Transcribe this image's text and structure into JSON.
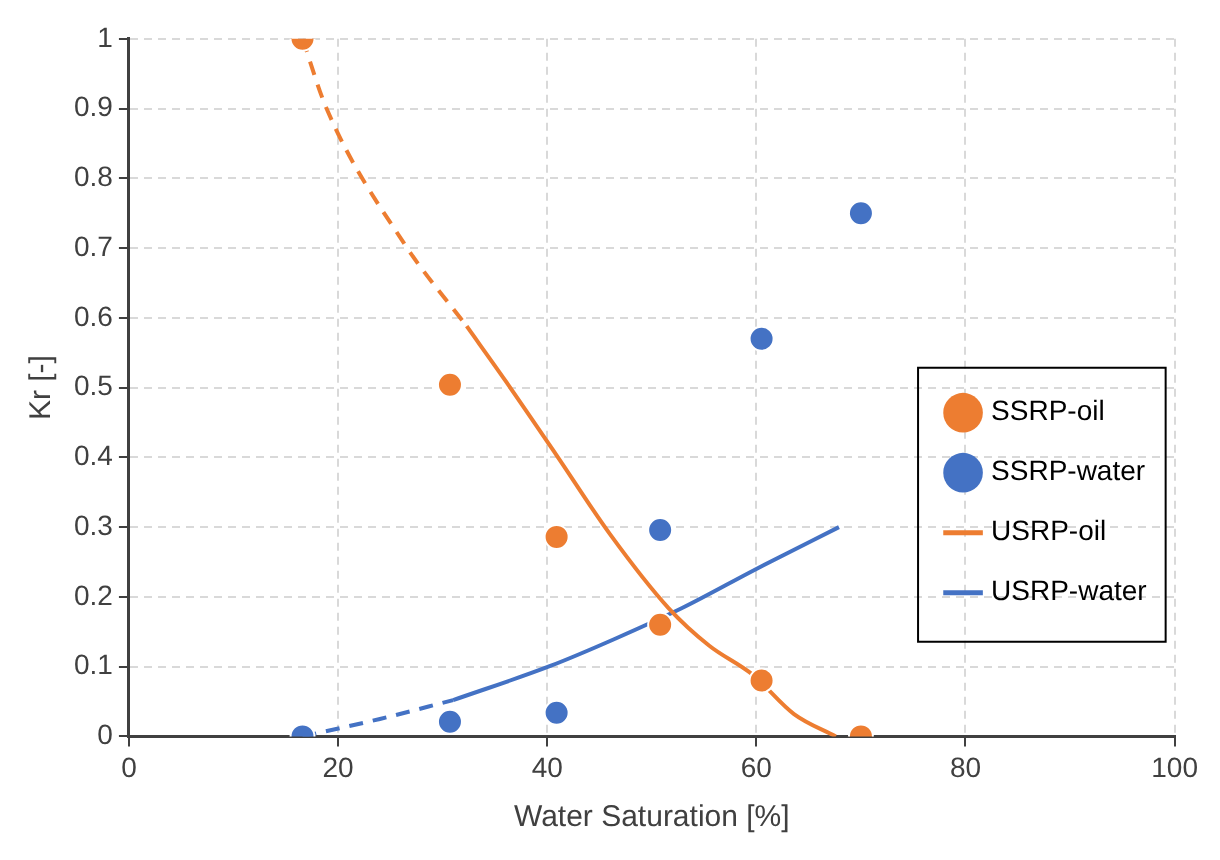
{
  "chart_data": {
    "type": "scatter",
    "xlabel": "Water Saturation [%]",
    "ylabel": "Kr [-]",
    "xlim": [
      0,
      100
    ],
    "xticks": [
      0,
      20,
      40,
      60,
      80,
      100
    ],
    "ylim": [
      0,
      1
    ],
    "yticks": [
      0,
      0.1,
      0.2,
      0.3,
      0.4,
      0.5,
      0.6,
      0.7,
      0.8,
      0.9,
      1
    ],
    "grid": true,
    "legend": "right",
    "series": [
      {
        "name": "SSRP-oil",
        "type": "scatter",
        "marker": "circle",
        "color": "#ed7d31",
        "x": [
          16.6,
          30.7,
          40.9,
          50.8,
          60.5,
          70
        ],
        "values": [
          1,
          0.504,
          0.286,
          0.16,
          0.08,
          0
        ]
      },
      {
        "name": "SSRP-water",
        "type": "scatter",
        "marker": "circle",
        "color": "#4472c4",
        "x": [
          16.6,
          30.7,
          40.9,
          50.8,
          60.5,
          70
        ],
        "values": [
          0,
          0.021,
          0.034,
          0.296,
          0.57,
          0.75
        ]
      },
      {
        "name": "USRP-oil",
        "type": "line",
        "marker": "none",
        "line_style": "solid",
        "color": "#ed7d31",
        "x": [
          32.3,
          36,
          40.9,
          46,
          51.6,
          55.5,
          59.6,
          63.6,
          67.6
        ],
        "values": [
          0.588,
          0.51,
          0.403,
          0.29,
          0.184,
          0.13,
          0.089,
          0.032,
          0
        ]
      },
      {
        "name": "USRP-water",
        "type": "line",
        "marker": "none",
        "line_style": "solid",
        "color": "#4472c4",
        "x": [
          31,
          40.3,
          46.5,
          52.9,
          60,
          67.9
        ],
        "values": [
          0.052,
          0.101,
          0.14,
          0.184,
          0.24,
          0.3
        ]
      },
      {
        "type": "line",
        "marker": "none",
        "line_style": "dashed",
        "color": "#ed7d31",
        "x": [
          16.6,
          18.9,
          26.3,
          32.3
        ],
        "values": [
          1,
          0.9,
          0.707,
          0.588
        ]
      },
      {
        "type": "line",
        "marker": "none",
        "line_style": "dashed",
        "color": "#4472c4",
        "x": [
          16.6,
          24,
          31
        ],
        "values": [
          0,
          0.025,
          0.052
        ]
      }
    ]
  }
}
